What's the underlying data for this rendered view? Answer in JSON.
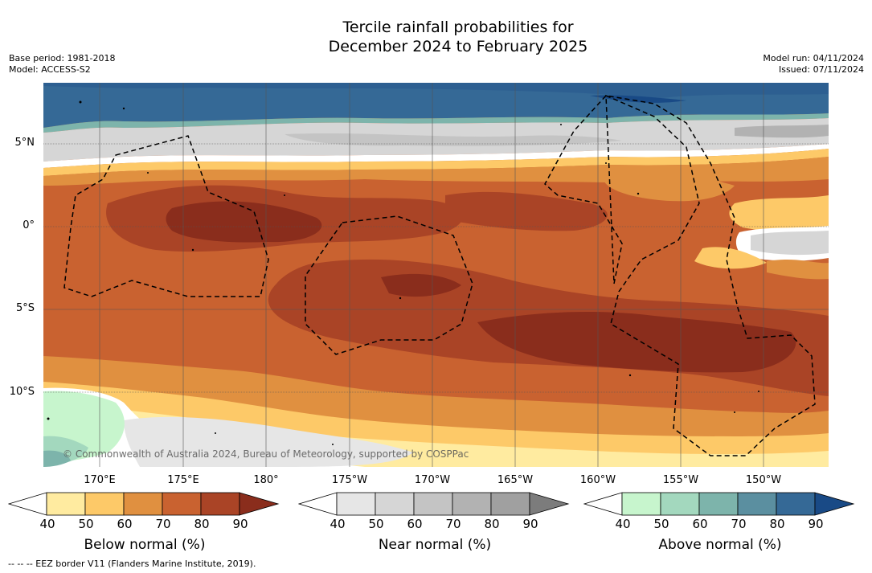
{
  "title_line1": "Tercile rainfall probabilities for",
  "title_line2": "December 2024 to February 2025",
  "base_period": "Base period: 1981-2018",
  "model": "Model: ACCESS-S2",
  "model_run": "Model run: 04/11/2024",
  "issued": "Issued: 07/11/2024",
  "latitude_labels": [
    "5°N",
    "0°",
    "5°S",
    "10°S"
  ],
  "longitude_labels": [
    "170°E",
    "175°E",
    "180°",
    "175°W",
    "170°W",
    "165°W",
    "160°W",
    "155°W",
    "150°W"
  ],
  "copyright": "© Commonwealth of Australia 2024, Bureau of Meteorology, supported by COSPPac",
  "colorbars": [
    {
      "label": "Below normal (%)",
      "ticks": [
        "40",
        "50",
        "60",
        "70",
        "80",
        "90"
      ],
      "colors": [
        "#ffffff",
        "#ffeba0",
        "#fdc968",
        "#e09040",
        "#c96230",
        "#aa4426",
        "#8a2d1c"
      ]
    },
    {
      "label": "Near normal (%)",
      "ticks": [
        "40",
        "50",
        "60",
        "70",
        "80",
        "90"
      ],
      "colors": [
        "#ffffff",
        "#e6e6e6",
        "#d6d6d6",
        "#c4c4c4",
        "#b2b2b2",
        "#a0a0a0",
        "#7c7c7c"
      ]
    },
    {
      "label": "Above normal (%)",
      "ticks": [
        "40",
        "50",
        "60",
        "70",
        "80",
        "90"
      ],
      "colors": [
        "#ffffff",
        "#c7f5cd",
        "#a3d8be",
        "#7db4ab",
        "#5b8fa0",
        "#356996",
        "#194a86"
      ]
    }
  ],
  "legend_note": "--  --  -- EEZ border V11 (Flanders Marine Institute, 2019)."
}
